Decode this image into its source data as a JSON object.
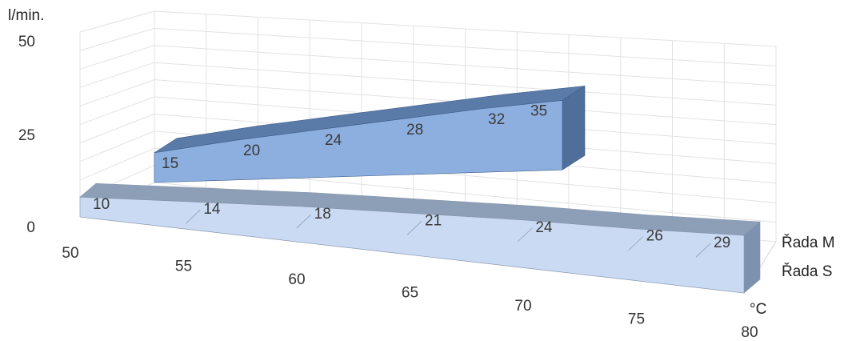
{
  "chart_data": {
    "type": "area",
    "x": [
      50,
      55,
      60,
      65,
      70,
      75,
      80
    ],
    "y_unit": "l/min.",
    "x_unit": "°C",
    "ylim": [
      0,
      50
    ],
    "y_ticks": [
      "0",
      "25",
      "50"
    ],
    "x_ticks": [
      "50",
      "55",
      "60",
      "65",
      "70",
      "75",
      "80"
    ],
    "grid": true,
    "legend": "right",
    "series": [
      {
        "name": "Řada M",
        "values": [
          15,
          20,
          24,
          28,
          32,
          35,
          null
        ],
        "color": "#8db0e0"
      },
      {
        "name": "Řada S",
        "values": [
          10,
          14,
          18,
          21,
          24,
          26,
          29
        ],
        "color": "#c8d9f1"
      }
    ]
  }
}
